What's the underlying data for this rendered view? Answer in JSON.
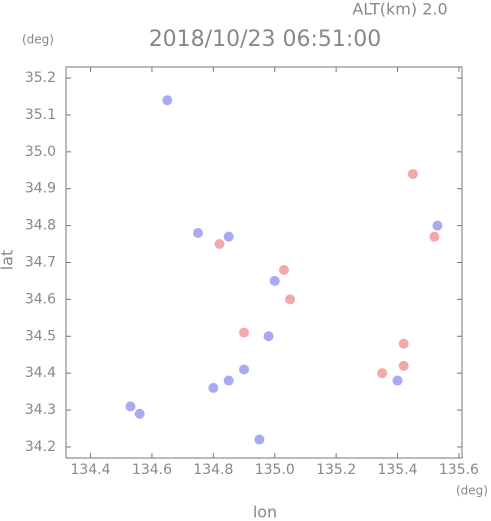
{
  "chart_data": {
    "type": "scatter",
    "title": "2018/10/23 06:51:00",
    "subtitle": "ALT(km) 2.0",
    "x_label": "lon",
    "y_label": "lat",
    "x_unit": "(deg)",
    "y_unit": "(deg)",
    "xlim": [
      134.32,
      135.61
    ],
    "ylim": [
      34.17,
      35.23
    ],
    "xticks": [
      134.4,
      134.6,
      134.8,
      {
        "value": 135,
        "label": "135.0"
      },
      135.2,
      135.4,
      135.6
    ],
    "yticks": [
      34.2,
      34.3,
      34.4,
      34.5,
      34.6,
      34.7,
      34.8,
      34.9,
      {
        "value": 35,
        "label": "35.0"
      },
      35.1,
      35.2
    ],
    "series": [
      {
        "color": "#8c8cf0",
        "x": [
          134.53,
          134.56,
          134.85,
          134.9,
          134.8,
          134.95,
          135.0,
          134.75,
          134.85,
          135.4,
          135.53,
          134.65,
          134.98
        ],
        "y": [
          34.31,
          34.29,
          34.38,
          34.41,
          34.36,
          34.22,
          34.65,
          34.78,
          34.77,
          34.38,
          34.8,
          35.14,
          34.5
        ]
      },
      {
        "color": "#f08c8c",
        "x": [
          134.82,
          135.05,
          135.42,
          135.35,
          134.9,
          135.45,
          135.52,
          135.03,
          135.42
        ],
        "y": [
          34.75,
          34.6,
          34.42,
          34.4,
          34.51,
          34.94,
          34.77,
          34.68,
          34.48
        ]
      }
    ]
  }
}
